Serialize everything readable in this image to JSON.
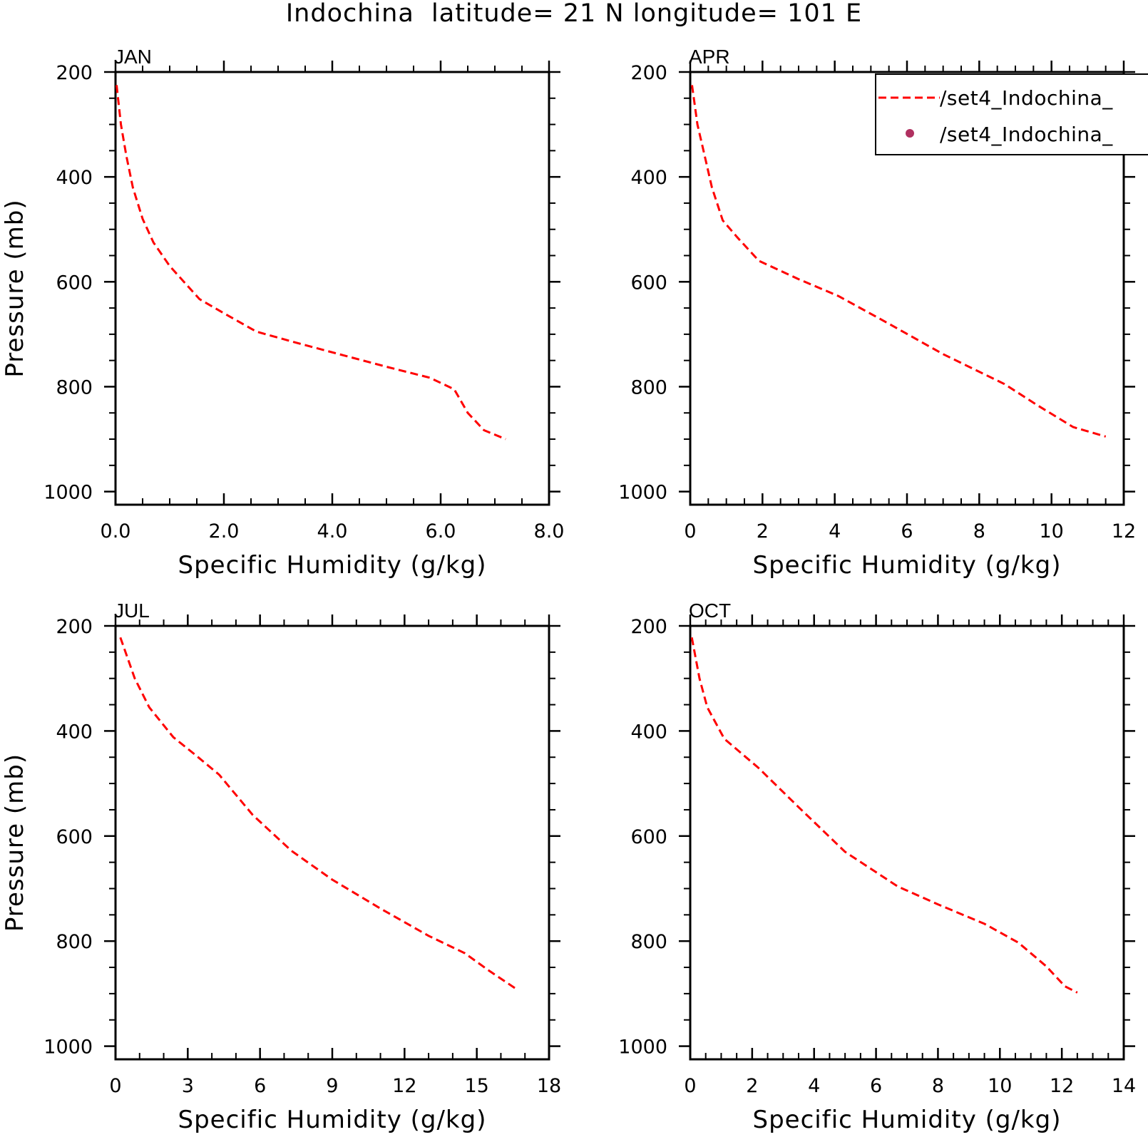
{
  "figure": {
    "title": "Indochina  latitude= 21 N longitude= 101 E"
  },
  "legend": {
    "entries": [
      {
        "label": "/set4_Indochina_",
        "style": "dashed-line",
        "color": "#ff0000"
      },
      {
        "label": "/set4_Indochina_",
        "style": "dot",
        "color": "#b03060"
      }
    ]
  },
  "chart_data": [
    {
      "type": "line",
      "panel": "JAN",
      "title": "JAN",
      "xlabel": "Specific Humidity (g/kg)",
      "ylabel": "Pressure (mb)",
      "xlim": [
        0,
        8
      ],
      "ylim": [
        1025,
        200
      ],
      "y_reversed": true,
      "xticks": [
        "0.0",
        "2.0",
        "4.0",
        "6.0",
        "8.0"
      ],
      "yticks": [
        "200",
        "400",
        "600",
        "800",
        "1000"
      ],
      "series": [
        {
          "color": "#ff0000",
          "dash": "dashed",
          "points": [
            [
              0.02,
              225
            ],
            [
              0.1,
              300
            ],
            [
              0.2,
              360
            ],
            [
              0.32,
              420
            ],
            [
              0.5,
              480
            ],
            [
              0.7,
              525
            ],
            [
              1.0,
              570
            ],
            [
              1.55,
              633
            ],
            [
              2.0,
              660
            ],
            [
              2.6,
              695
            ],
            [
              3.4,
              718
            ],
            [
              4.2,
              740
            ],
            [
              5.0,
              762
            ],
            [
              5.8,
              783
            ],
            [
              6.25,
              805
            ],
            [
              6.5,
              850
            ],
            [
              6.8,
              883
            ],
            [
              7.2,
              900
            ]
          ]
        }
      ]
    },
    {
      "type": "line",
      "panel": "APR",
      "title": "APR",
      "xlabel": "Specific Humidity (g/kg)",
      "ylabel": "",
      "xlim": [
        0,
        12
      ],
      "ylim": [
        1025,
        200
      ],
      "y_reversed": true,
      "xticks": [
        "0",
        "2",
        "4",
        "6",
        "8",
        "10",
        "12"
      ],
      "yticks": [
        "200",
        "400",
        "600",
        "800",
        "1000"
      ],
      "series": [
        {
          "color": "#ff0000",
          "dash": "dashed",
          "points": [
            [
              0.05,
              225
            ],
            [
              0.2,
              300
            ],
            [
              0.4,
              360
            ],
            [
              0.6,
              420
            ],
            [
              0.9,
              483
            ],
            [
              1.3,
              515
            ],
            [
              1.9,
              560
            ],
            [
              3.0,
              595
            ],
            [
              4.1,
              627
            ],
            [
              5.5,
              680
            ],
            [
              7.0,
              738
            ],
            [
              8.7,
              795
            ],
            [
              9.6,
              835
            ],
            [
              10.6,
              877
            ],
            [
              11.5,
              895
            ]
          ]
        }
      ]
    },
    {
      "type": "line",
      "panel": "JUL",
      "title": "JUL",
      "xlabel": "Specific Humidity (g/kg)",
      "ylabel": "Pressure (mb)",
      "xlim": [
        0,
        18
      ],
      "ylim": [
        1025,
        200
      ],
      "y_reversed": true,
      "xticks": [
        "0",
        "3",
        "6",
        "9",
        "12",
        "15",
        "18"
      ],
      "yticks": [
        "200",
        "400",
        "600",
        "800",
        "1000"
      ],
      "series": [
        {
          "color": "#ff0000",
          "dash": "dashed",
          "points": [
            [
              0.2,
              222
            ],
            [
              0.8,
              300
            ],
            [
              1.4,
              355
            ],
            [
              2.4,
              412
            ],
            [
              3.3,
              445
            ],
            [
              4.3,
              483
            ],
            [
              5.7,
              560
            ],
            [
              7.3,
              628
            ],
            [
              9.0,
              683
            ],
            [
              11.0,
              738
            ],
            [
              13.0,
              790
            ],
            [
              14.5,
              823
            ],
            [
              15.5,
              856
            ],
            [
              16.7,
              893
            ]
          ]
        }
      ]
    },
    {
      "type": "line",
      "panel": "OCT",
      "title": "OCT",
      "xlabel": "Specific Humidity (g/kg)",
      "ylabel": "",
      "xlim": [
        0,
        14
      ],
      "ylim": [
        1025,
        200
      ],
      "y_reversed": true,
      "xticks": [
        "0",
        "2",
        "4",
        "6",
        "8",
        "10",
        "12",
        "14"
      ],
      "yticks": [
        "200",
        "400",
        "600",
        "800",
        "1000"
      ],
      "series": [
        {
          "color": "#ff0000",
          "dash": "dashed",
          "points": [
            [
              0.05,
              222
            ],
            [
              0.3,
              300
            ],
            [
              0.55,
              355
            ],
            [
              1.1,
              415
            ],
            [
              2.2,
              470
            ],
            [
              3.5,
              545
            ],
            [
              5.0,
              630
            ],
            [
              6.7,
              696
            ],
            [
              8.0,
              730
            ],
            [
              9.5,
              767
            ],
            [
              10.6,
              803
            ],
            [
              11.5,
              848
            ],
            [
              12.1,
              886
            ],
            [
              12.5,
              898
            ]
          ]
        }
      ]
    }
  ]
}
